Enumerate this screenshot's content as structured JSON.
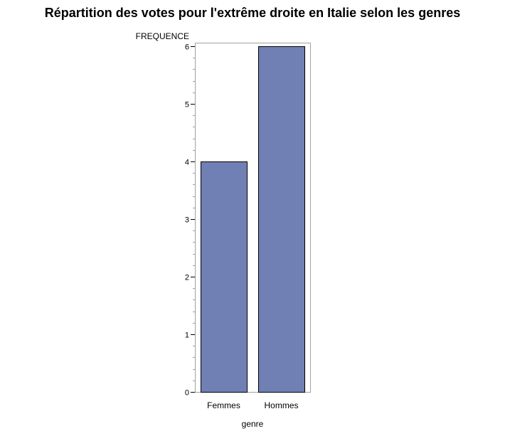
{
  "chart_data": {
    "type": "bar",
    "title": "Répartition des votes pour l'extrême droite en Italie selon les genres",
    "xlabel": "genre",
    "ylabel": "FREQUENCE",
    "categories": [
      "Femmes",
      "Hommes"
    ],
    "values": [
      4,
      6
    ],
    "ylim": [
      0,
      6
    ],
    "yticks": [
      0,
      1,
      2,
      3,
      4,
      5,
      6
    ],
    "grid": false,
    "legend": "none",
    "colors": {
      "bar_fill": "#7080b4",
      "bar_stroke": "#000000",
      "frame": "#a0a0a0",
      "minor_tick": "#a0a0a0"
    }
  }
}
